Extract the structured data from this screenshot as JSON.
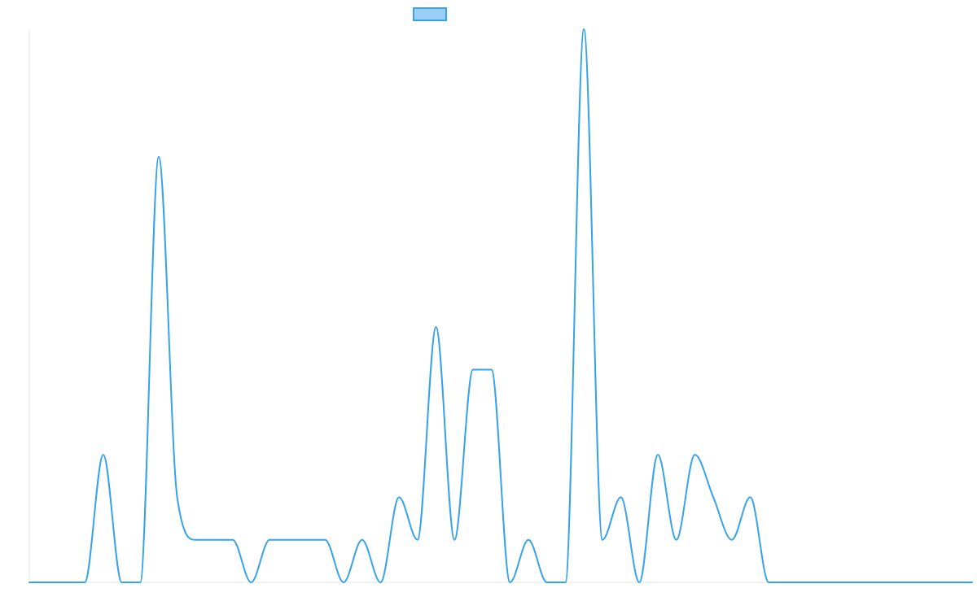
{
  "chart_data": {
    "type": "line",
    "title": "",
    "xlabel": "",
    "ylabel": "",
    "legend": {
      "placement": "top-center",
      "swatch_color": "#9ad0f5",
      "swatch_border": "#36a2eb"
    },
    "grid": false,
    "show_tick_labels": false,
    "smooth": true,
    "xlim": [
      0,
      51
    ],
    "ylim": [
      0,
      13
    ],
    "x": [
      0,
      1,
      2,
      3,
      4,
      5,
      6,
      7,
      8,
      9,
      10,
      11,
      12,
      13,
      14,
      15,
      16,
      17,
      18,
      19,
      20,
      21,
      22,
      23,
      24,
      25,
      26,
      27,
      28,
      29,
      30,
      31,
      32,
      33,
      34,
      35,
      36,
      37,
      38,
      39,
      40,
      41,
      42,
      43,
      44,
      45,
      46,
      47,
      48,
      49,
      50,
      51
    ],
    "series": [
      {
        "name": "",
        "color": "#36a2eb",
        "values": [
          0,
          0,
          0,
          0,
          3,
          0,
          0,
          10,
          2,
          1,
          1,
          1,
          0,
          1,
          1,
          1,
          1,
          0,
          1,
          0,
          2,
          1,
          6,
          1,
          5,
          5,
          0,
          1,
          0,
          0,
          13,
          1,
          2,
          0,
          3,
          1,
          3,
          2,
          1,
          2,
          0,
          0,
          0,
          0,
          0,
          0,
          0,
          0,
          0,
          0,
          0,
          0
        ]
      }
    ]
  }
}
